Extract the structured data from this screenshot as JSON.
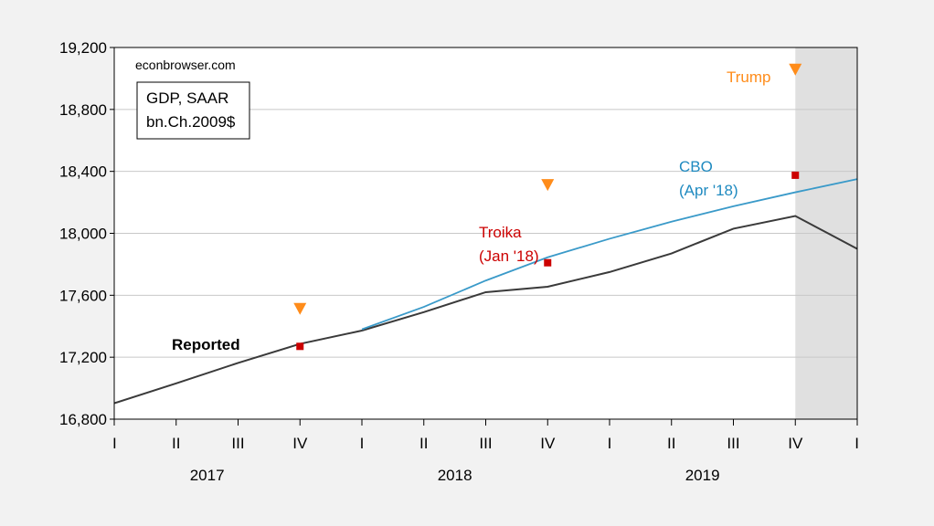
{
  "chart_data": {
    "type": "line",
    "watermark": "econbrowser.com",
    "legend_box": {
      "line1": "GDP, SAAR",
      "line2": "bn.Ch.2009$"
    },
    "ylim": [
      16800,
      19200
    ],
    "yticks": [
      16800,
      17200,
      17600,
      18000,
      18400,
      18800,
      19200
    ],
    "ytick_labels": [
      "16,800",
      "17,200",
      "17,600",
      "18,000",
      "18,400",
      "18,800",
      "19,200"
    ],
    "xlim": [
      0,
      12
    ],
    "quarter_ticks": [
      "I",
      "II",
      "III",
      "IV",
      "I",
      "II",
      "III",
      "IV",
      "I",
      "II",
      "III",
      "IV",
      "I"
    ],
    "year_labels": [
      {
        "x": 1.5,
        "label": "2017"
      },
      {
        "x": 5.5,
        "label": "2018"
      },
      {
        "x": 9.5,
        "label": "2019"
      }
    ],
    "shaded_region": {
      "x0": 11,
      "x1": 12,
      "color": "#e0e0e0"
    },
    "series": [
      {
        "name": "Reported",
        "color": "#3a3a3a",
        "x": [
          0,
          1,
          2,
          3,
          4,
          5,
          6,
          7,
          8,
          9,
          10,
          11,
          12
        ],
        "values": [
          16903,
          17031,
          17163,
          17286,
          17372,
          17491,
          17620,
          17655,
          17750,
          17870,
          18030,
          18112,
          17900
        ]
      },
      {
        "name": "CBO\n(Apr '18)",
        "color": "#3a9ac9",
        "x": [
          4,
          5,
          6,
          7,
          8,
          9,
          10,
          11,
          12
        ],
        "values": [
          17380,
          17525,
          17695,
          17845,
          17965,
          18075,
          18175,
          18265,
          18350
        ]
      }
    ],
    "markers": [
      {
        "name": "Troika\n(Jan '18)",
        "color": "#cc0000",
        "shape": "square",
        "x": [
          3,
          7,
          11
        ],
        "values": [
          17270,
          17810,
          18375
        ]
      },
      {
        "name": "Trump",
        "color": "#ff8c1a",
        "shape": "triangle-down",
        "x": [
          3,
          7,
          11
        ],
        "values": [
          17515,
          18315,
          19060
        ]
      }
    ],
    "labels": {
      "reported": "Reported",
      "troika_1": "Troika",
      "troika_2": "(Jan '18)",
      "cbo_1": "CBO",
      "cbo_2": "(Apr '18)",
      "trump": "Trump"
    }
  }
}
